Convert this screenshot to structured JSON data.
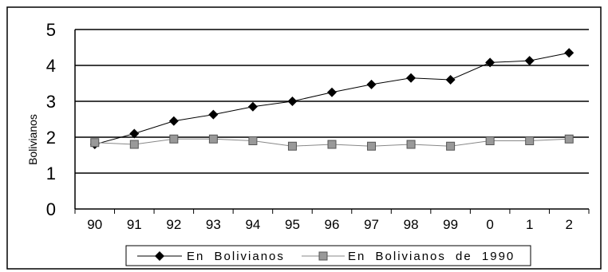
{
  "chart_data": {
    "type": "line",
    "title": "",
    "xlabel": "",
    "ylabel": "Bolivianos",
    "categories": [
      "90",
      "91",
      "92",
      "93",
      "94",
      "95",
      "96",
      "97",
      "98",
      "99",
      "0",
      "1",
      "2"
    ],
    "ylim": [
      0,
      5
    ],
    "yticks": [
      "0",
      "1",
      "2",
      "3",
      "4",
      "5"
    ],
    "grid": "horizontal",
    "legend_position": "bottom",
    "series": [
      {
        "name": "En Bolivianos",
        "marker": "diamond",
        "color": "#000000",
        "values": [
          1.8,
          2.1,
          2.45,
          2.63,
          2.85,
          3.0,
          3.25,
          3.47,
          3.65,
          3.6,
          4.08,
          4.13,
          4.35
        ]
      },
      {
        "name": "En Bolivianos de 1990",
        "marker": "square",
        "color": "#888888",
        "values": [
          1.85,
          1.8,
          1.95,
          1.95,
          1.9,
          1.75,
          1.8,
          1.75,
          1.8,
          1.75,
          1.9,
          1.9,
          1.95
        ]
      }
    ]
  }
}
